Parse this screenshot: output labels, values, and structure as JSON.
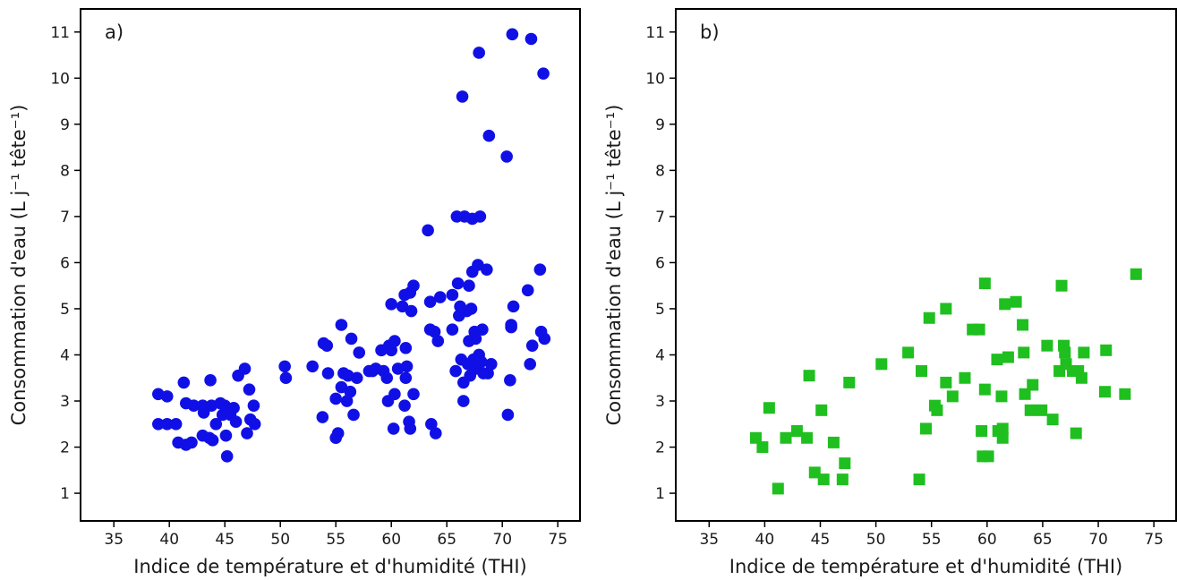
{
  "chart_data": [
    {
      "type": "scatter",
      "panel_label": "a)",
      "xlabel": "Indice de température et d'humidité (THI)",
      "ylabel": "Consommation d'eau (L j⁻¹ tête⁻¹)",
      "xlim": [
        32,
        77
      ],
      "ylim": [
        0.4,
        11.5
      ],
      "xticks": [
        35,
        40,
        45,
        50,
        55,
        60,
        65,
        70,
        75
      ],
      "yticks": [
        1,
        2,
        3,
        4,
        5,
        6,
        7,
        8,
        9,
        10,
        11
      ],
      "grid": false,
      "marker": "circle",
      "color": "#1010e6",
      "series": [
        {
          "points": [
            [
              39.0,
              3.15
            ],
            [
              39.8,
              3.1
            ],
            [
              39.0,
              2.5
            ],
            [
              39.8,
              2.5
            ],
            [
              40.6,
              2.5
            ],
            [
              40.8,
              2.1
            ],
            [
              41.3,
              3.4
            ],
            [
              41.5,
              2.05
            ],
            [
              42.0,
              2.1
            ],
            [
              41.5,
              2.95
            ],
            [
              42.2,
              2.9
            ],
            [
              43.0,
              2.9
            ],
            [
              43.0,
              2.25
            ],
            [
              43.1,
              2.75
            ],
            [
              43.6,
              2.2
            ],
            [
              43.7,
              3.45
            ],
            [
              43.8,
              2.9
            ],
            [
              43.9,
              2.15
            ],
            [
              44.2,
              2.5
            ],
            [
              44.6,
              2.95
            ],
            [
              44.8,
              2.7
            ],
            [
              45.0,
              2.9
            ],
            [
              45.1,
              2.25
            ],
            [
              45.2,
              1.8
            ],
            [
              45.5,
              2.7
            ],
            [
              45.8,
              2.85
            ],
            [
              46.0,
              2.55
            ],
            [
              46.2,
              3.55
            ],
            [
              46.8,
              3.7
            ],
            [
              47.0,
              2.3
            ],
            [
              47.2,
              3.25
            ],
            [
              47.3,
              2.6
            ],
            [
              47.6,
              2.9
            ],
            [
              47.7,
              2.5
            ],
            [
              50.4,
              3.75
            ],
            [
              50.5,
              3.5
            ],
            [
              52.9,
              3.75
            ],
            [
              53.8,
              2.65
            ],
            [
              53.9,
              4.25
            ],
            [
              54.2,
              4.2
            ],
            [
              54.3,
              3.6
            ],
            [
              55.0,
              2.2
            ],
            [
              55.0,
              3.05
            ],
            [
              55.2,
              2.3
            ],
            [
              55.5,
              3.3
            ],
            [
              55.5,
              4.65
            ],
            [
              55.7,
              3.6
            ],
            [
              56.0,
              3.0
            ],
            [
              56.1,
              3.55
            ],
            [
              56.3,
              3.2
            ],
            [
              56.4,
              4.35
            ],
            [
              56.6,
              2.7
            ],
            [
              56.9,
              3.5
            ],
            [
              57.1,
              4.05
            ],
            [
              58.0,
              3.65
            ],
            [
              58.3,
              3.65
            ],
            [
              58.6,
              3.7
            ],
            [
              59.1,
              4.1
            ],
            [
              59.3,
              3.65
            ],
            [
              59.6,
              3.5
            ],
            [
              59.7,
              3.0
            ],
            [
              59.8,
              4.2
            ],
            [
              60.0,
              4.1
            ],
            [
              60.0,
              5.1
            ],
            [
              60.2,
              2.4
            ],
            [
              60.3,
              3.15
            ],
            [
              60.3,
              4.3
            ],
            [
              60.6,
              3.7
            ],
            [
              61.0,
              5.05
            ],
            [
              61.2,
              2.9
            ],
            [
              61.2,
              5.3
            ],
            [
              61.3,
              3.5
            ],
            [
              61.3,
              4.15
            ],
            [
              61.4,
              3.75
            ],
            [
              61.6,
              2.55
            ],
            [
              61.7,
              5.35
            ],
            [
              61.7,
              2.4
            ],
            [
              61.8,
              4.95
            ],
            [
              62.0,
              5.5
            ],
            [
              62.0,
              3.15
            ],
            [
              63.3,
              6.7
            ],
            [
              63.5,
              4.55
            ],
            [
              63.5,
              5.15
            ],
            [
              63.6,
              2.5
            ],
            [
              63.9,
              4.5
            ],
            [
              64.0,
              2.3
            ],
            [
              64.2,
              4.3
            ],
            [
              64.4,
              5.25
            ],
            [
              65.5,
              5.3
            ],
            [
              65.5,
              4.55
            ],
            [
              65.8,
              3.65
            ],
            [
              65.9,
              7.0
            ],
            [
              66.0,
              5.55
            ],
            [
              66.1,
              4.85
            ],
            [
              66.2,
              5.05
            ],
            [
              66.3,
              3.9
            ],
            [
              66.4,
              9.6
            ],
            [
              66.5,
              3.0
            ],
            [
              66.5,
              3.4
            ],
            [
              66.6,
              7.0
            ],
            [
              66.8,
              4.95
            ],
            [
              66.9,
              3.8
            ],
            [
              67.0,
              5.5
            ],
            [
              67.0,
              4.3
            ],
            [
              67.1,
              3.55
            ],
            [
              67.2,
              5.0
            ],
            [
              67.3,
              5.8
            ],
            [
              67.3,
              6.95
            ],
            [
              67.4,
              3.9
            ],
            [
              67.5,
              4.5
            ],
            [
              67.6,
              4.35
            ],
            [
              67.6,
              3.7
            ],
            [
              67.8,
              5.95
            ],
            [
              67.9,
              10.55
            ],
            [
              67.9,
              4.0
            ],
            [
              68.0,
              7.0
            ],
            [
              68.1,
              3.85
            ],
            [
              68.2,
              4.55
            ],
            [
              68.3,
              3.6
            ],
            [
              68.6,
              5.85
            ],
            [
              68.7,
              3.6
            ],
            [
              68.8,
              8.75
            ],
            [
              69.0,
              3.8
            ],
            [
              70.4,
              8.3
            ],
            [
              70.5,
              2.7
            ],
            [
              70.7,
              3.45
            ],
            [
              70.8,
              4.6
            ],
            [
              70.8,
              4.65
            ],
            [
              70.9,
              10.95
            ],
            [
              71.0,
              5.05
            ],
            [
              72.3,
              5.4
            ],
            [
              72.5,
              3.8
            ],
            [
              72.6,
              10.85
            ],
            [
              72.7,
              4.2
            ],
            [
              73.4,
              5.85
            ],
            [
              73.5,
              4.5
            ],
            [
              73.7,
              10.1
            ],
            [
              73.8,
              4.35
            ]
          ]
        }
      ]
    },
    {
      "type": "scatter",
      "panel_label": "b)",
      "xlabel": "Indice de température et d'humidité (THI)",
      "ylabel": "Consommation d'eau (L j⁻¹ tête⁻¹)",
      "xlim": [
        32,
        77
      ],
      "ylim": [
        0.4,
        11.5
      ],
      "xticks": [
        35,
        40,
        45,
        50,
        55,
        60,
        65,
        70,
        75
      ],
      "yticks": [
        1,
        2,
        3,
        4,
        5,
        6,
        7,
        8,
        9,
        10,
        11
      ],
      "grid": false,
      "marker": "square",
      "color": "#1fbf1f",
      "series": [
        {
          "points": [
            [
              39.2,
              2.2
            ],
            [
              39.8,
              2.0
            ],
            [
              40.4,
              2.85
            ],
            [
              41.2,
              1.1
            ],
            [
              41.9,
              2.2
            ],
            [
              42.9,
              2.35
            ],
            [
              43.8,
              2.2
            ],
            [
              44.0,
              3.55
            ],
            [
              44.5,
              1.45
            ],
            [
              45.1,
              2.8
            ],
            [
              45.3,
              1.3
            ],
            [
              46.2,
              2.1
            ],
            [
              47.0,
              1.3
            ],
            [
              47.2,
              1.65
            ],
            [
              47.6,
              3.4
            ],
            [
              50.5,
              3.8
            ],
            [
              52.9,
              4.05
            ],
            [
              53.9,
              1.3
            ],
            [
              54.1,
              3.65
            ],
            [
              54.5,
              2.4
            ],
            [
              54.8,
              4.8
            ],
            [
              55.3,
              2.9
            ],
            [
              55.5,
              2.8
            ],
            [
              56.3,
              3.4
            ],
            [
              56.3,
              5.0
            ],
            [
              56.9,
              3.1
            ],
            [
              58.0,
              3.5
            ],
            [
              58.7,
              4.55
            ],
            [
              59.3,
              4.55
            ],
            [
              59.5,
              2.35
            ],
            [
              59.6,
              1.8
            ],
            [
              59.8,
              3.25
            ],
            [
              59.8,
              5.55
            ],
            [
              60.1,
              1.8
            ],
            [
              60.9,
              3.9
            ],
            [
              61.0,
              2.35
            ],
            [
              61.3,
              3.1
            ],
            [
              61.4,
              2.2
            ],
            [
              61.4,
              2.4
            ],
            [
              61.6,
              5.1
            ],
            [
              61.9,
              3.95
            ],
            [
              62.6,
              5.15
            ],
            [
              63.2,
              4.65
            ],
            [
              63.3,
              4.05
            ],
            [
              63.4,
              3.15
            ],
            [
              63.9,
              2.8
            ],
            [
              64.1,
              3.35
            ],
            [
              64.9,
              2.8
            ],
            [
              65.4,
              4.2
            ],
            [
              65.9,
              2.6
            ],
            [
              66.5,
              3.65
            ],
            [
              66.7,
              5.5
            ],
            [
              66.9,
              4.2
            ],
            [
              67.0,
              4.05
            ],
            [
              67.1,
              3.8
            ],
            [
              67.7,
              3.65
            ],
            [
              68.0,
              2.3
            ],
            [
              68.2,
              3.65
            ],
            [
              68.5,
              3.5
            ],
            [
              68.7,
              4.05
            ],
            [
              70.6,
              3.2
            ],
            [
              70.7,
              4.1
            ],
            [
              72.4,
              3.15
            ],
            [
              73.4,
              5.75
            ]
          ]
        }
      ]
    }
  ]
}
